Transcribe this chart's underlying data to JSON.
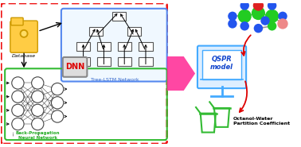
{
  "bg_color": "#ffffff",
  "outer_box_color": "#ee1111",
  "tree_box_color": "#5588ee",
  "tree_box_fill": "#f0f8ff",
  "bp_box_color": "#33bb33",
  "big_arrow_color": "#ff3399",
  "monitor_color": "#44aaff",
  "monitor_fill": "#ddeeff",
  "red_arrow_color": "#dd0000",
  "tree_label": "Tree-LSTM Network",
  "bp_label": "Back-Propagation\nNeural Network",
  "db_label": "Database",
  "dnn_label": "DNN",
  "qspr_label": "QSPR\nmodel",
  "octanol_label": "Octanol-Water\nPartition Coefficient",
  "folder_color": "#ffcc44",
  "folder_edge": "#cc9900",
  "node_color": "#ffffff",
  "node_edge": "#444444",
  "green_atom": "#22cc22",
  "blue_atom": "#2255ee",
  "red_atom": "#dd2222",
  "salmon_atom": "#ee8888",
  "beaker_color": "#33bb33",
  "bond_color": "#999999"
}
